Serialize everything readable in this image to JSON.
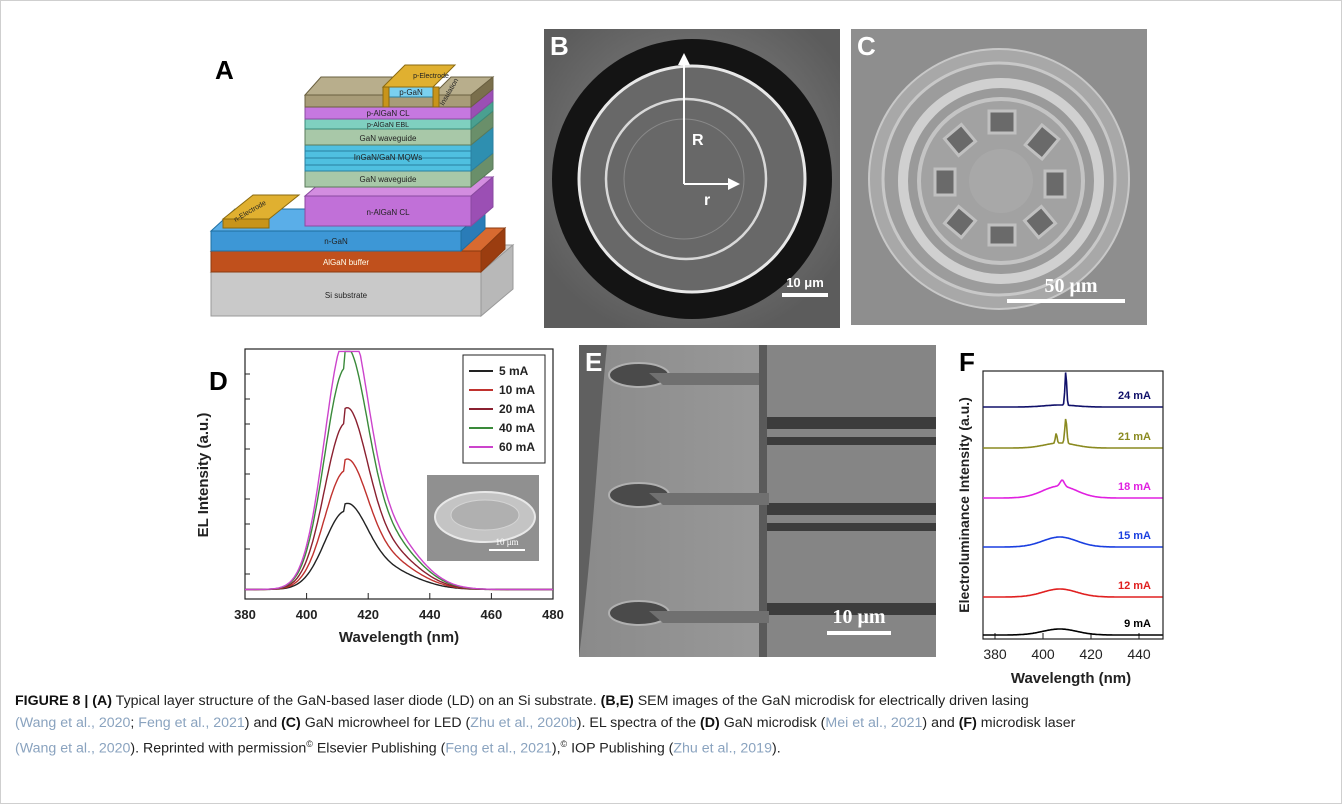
{
  "panels": {
    "a": {
      "letter": "A",
      "layers": {
        "p_electrode": "p-Electrode",
        "p_gan": "p-GaN",
        "insulation": "Insulation",
        "p_algan_cl": "p-AlGaN CL",
        "p_algan_ebl": "p-AlGaN EBL",
        "gan_wg_top": "GaN waveguide",
        "mqws": "InGaN/GaN MQWs",
        "gan_wg_bottom": "GaN waveguide",
        "n_electrode": "n-Electrode",
        "n_algan_cl": "n-AlGaN CL",
        "n_gan": "n-GaN",
        "algan_buffer": "AlGaN buffer",
        "si_substrate": "Si substrate"
      }
    },
    "b": {
      "letter": "B",
      "label_R": "R",
      "label_r": "r",
      "scale": "10 μm"
    },
    "c": {
      "letter": "C",
      "scale": "50 μm"
    },
    "d": {
      "letter": "D",
      "inset_scale": "10 μm"
    },
    "e": {
      "letter": "E",
      "scale": "10 μm"
    },
    "f": {
      "letter": "F"
    }
  },
  "chart_data": [
    {
      "panel": "D",
      "type": "line",
      "xlabel": "Wavelength (nm)",
      "ylabel": "EL Intensity (a.u.)",
      "xlim": [
        380,
        480
      ],
      "ylim": [
        0,
        1.05
      ],
      "xticks": [
        380,
        400,
        420,
        440,
        460,
        480
      ],
      "legend_position": "top-right",
      "series": [
        {
          "name": "5 mA",
          "color": "#222222",
          "peak": 0.31,
          "shoulder": 0.2
        },
        {
          "name": "10 mA",
          "color": "#c0322e",
          "peak": 0.47,
          "shoulder": 0.3
        },
        {
          "name": "20 mA",
          "color": "#8a2030",
          "peak": 0.66,
          "shoulder": 0.4
        },
        {
          "name": "40 mA",
          "color": "#3a8a3a",
          "peak": 0.88,
          "shoulder": 0.52
        },
        {
          "name": "60 mA",
          "color": "#cc44cc",
          "peak": 1.0,
          "shoulder": 0.6
        }
      ]
    },
    {
      "panel": "F",
      "type": "line",
      "xlabel": "Wavelength (nm)",
      "ylabel": "Electroluminance Intensity (a.u.)",
      "xlim": [
        375,
        450
      ],
      "xticks": [
        380,
        400,
        420,
        440
      ],
      "series": [
        {
          "name": "9 mA",
          "color": "#000000"
        },
        {
          "name": "12 mA",
          "color": "#e02020"
        },
        {
          "name": "15 mA",
          "color": "#1a3fe0"
        },
        {
          "name": "18 mA",
          "color": "#e020e0"
        },
        {
          "name": "21 mA",
          "color": "#8a8a20"
        },
        {
          "name": "24 mA",
          "color": "#10106a"
        }
      ]
    }
  ],
  "caption": {
    "fig_label": "FIGURE 8 | ",
    "a_ref": "(A)",
    "t1": " Typical layer structure of the GaN-based laser diode (LD) on an Si substrate. ",
    "be_ref": "(B,E)",
    "t2": " SEM images of the GaN microdisk for electrically driven lasing",
    "cite1": "(Wang et al., 2020",
    "t3": "; ",
    "cite2": "Feng et al., 2021",
    "t4": ") and ",
    "c_ref": "(C)",
    "t5": " GaN microwheel for LED (",
    "cite3": "Zhu et al., 2020b",
    "t6": "). EL spectra of the ",
    "d_ref": "(D)",
    "t7": " GaN microdisk (",
    "cite4": "Mei et al., 2021",
    "t8": ") and ",
    "f_ref": "(F)",
    "t9": " microdisk laser",
    "cite5": "(Wang et al., 2020",
    "t10": "). Reprinted with permission",
    "copy": "©",
    "t11": " Elsevier Publishing (",
    "cite6": "Feng et al., 2021",
    "t12": "),",
    "t13": " IOP Publishing (",
    "cite7": "Zhu et al., 2019",
    "t14": ")."
  }
}
